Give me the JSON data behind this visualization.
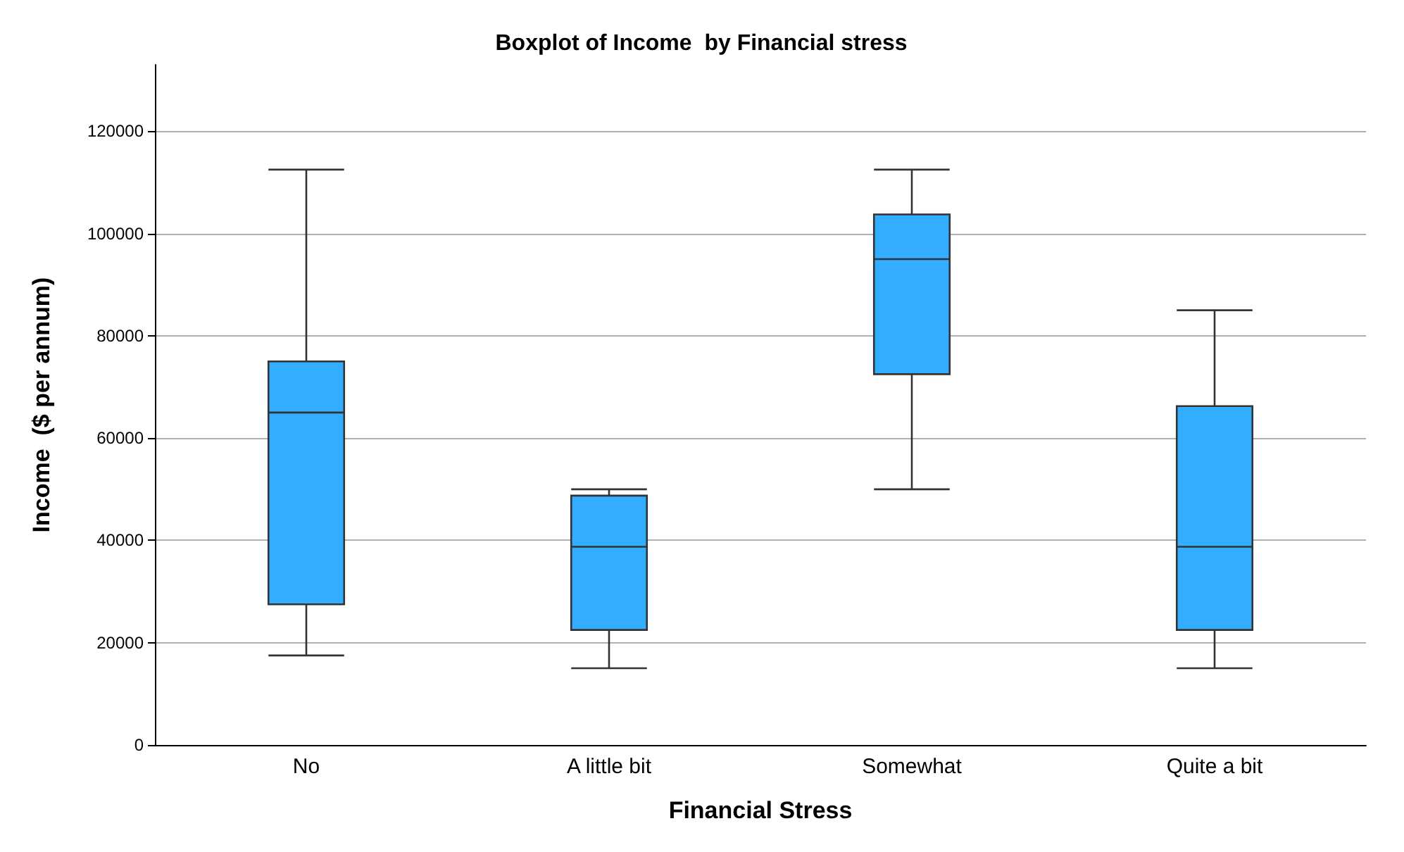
{
  "chart_data": {
    "type": "box",
    "title": "Boxplot of Income  by Financial stress",
    "xlabel": "Financial Stress",
    "ylabel": "Income  ($ per annum)",
    "categories": [
      "No",
      "A little bit",
      "Somewhat",
      "Quite a bit"
    ],
    "series": [
      {
        "color": "#33adff",
        "boxes": [
          {
            "low": 17500,
            "q1": 27500,
            "median": 65000,
            "q3": 75000,
            "high": 112500
          },
          {
            "low": 15000,
            "q1": 22500,
            "median": 38750,
            "q3": 48750,
            "high": 50000
          },
          {
            "low": 50000,
            "q1": 72500,
            "median": 95000,
            "q3": 103750,
            "high": 112500
          },
          {
            "low": 15000,
            "q1": 22500,
            "median": 38750,
            "q3": 66250,
            "high": 85000
          }
        ]
      }
    ],
    "ylim": [
      0,
      133000
    ],
    "yticks": [
      0,
      20000,
      40000,
      60000,
      80000,
      100000,
      120000
    ],
    "grid": "y"
  }
}
